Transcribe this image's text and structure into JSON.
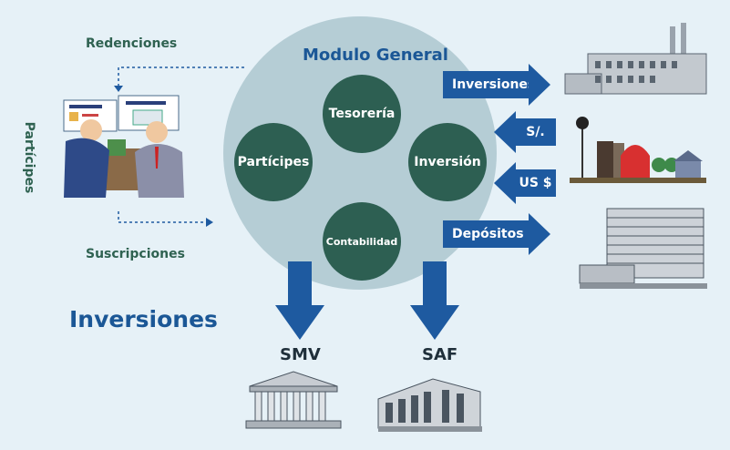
{
  "module": {
    "title": "Modulo General",
    "nodes": {
      "tesoreria": "Tesorería",
      "participes": "Partícipes",
      "inversion": "Inversión",
      "contabilidad": "Contabilidad"
    }
  },
  "left": {
    "vertical_label": "Partícipes",
    "redenciones": "Redenciones",
    "suscripciones": "Suscripciones",
    "heading": "Inversiones"
  },
  "right_flows": {
    "inversiones": "Inversiones",
    "soles": "S/.",
    "dolares": "US $",
    "depositos": "Depósitos"
  },
  "bottom": {
    "smv": "SMV",
    "saf": "SAF"
  },
  "colors": {
    "background": "#e6f1f7",
    "circle": "#b5cdd5",
    "node": "#2d5f52",
    "arrow": "#1e5aa0",
    "title_blue": "#1b5796",
    "label_green": "#2f6251"
  }
}
